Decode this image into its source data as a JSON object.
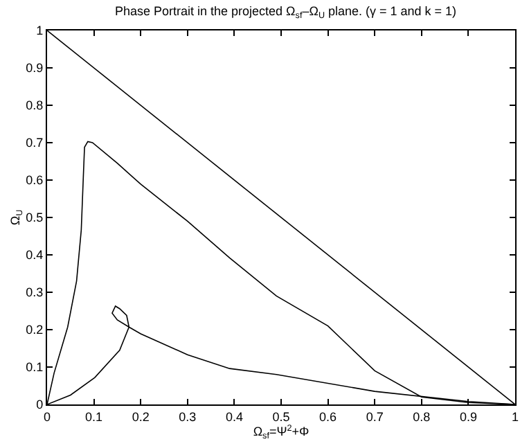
{
  "chart_data": {
    "type": "line",
    "title": "Phase Portrait in the projected Ω$_{sf}$–Ω$_{U}$ plane. (γ = 1 and k = 1)",
    "xlabel": "Ω$_{sf}$=Ψ$^{2}$+Φ",
    "ylabel": "Ω$_{U}$",
    "xlim": [
      0,
      1
    ],
    "ylim": [
      0,
      1
    ],
    "xticks": [
      0,
      0.1,
      0.2,
      0.3,
      0.4,
      0.5,
      0.6,
      0.7,
      0.8,
      0.9,
      1
    ],
    "yticks": [
      0,
      0.1,
      0.2,
      0.3,
      0.4,
      0.5,
      0.6,
      0.7,
      0.8,
      0.9,
      1
    ],
    "marker": "none",
    "line_style": "solid",
    "series": [
      {
        "color": "#000000",
        "x": [
          0,
          1
        ],
        "values": [
          1,
          0
        ]
      },
      {
        "color": "#000000",
        "x": [
          0,
          0.015,
          0.044,
          0.063,
          0.073,
          0.078,
          0.08,
          0.087,
          0.097,
          0.15,
          0.2,
          0.3,
          0.39,
          0.49,
          0.6,
          0.7,
          0.8,
          0.9,
          1
        ],
        "values": [
          0,
          0.084,
          0.207,
          0.33,
          0.466,
          0.626,
          0.688,
          0.703,
          0.7,
          0.645,
          0.589,
          0.49,
          0.392,
          0.29,
          0.21,
          0.09,
          0.02,
          0.005,
          0
        ]
      },
      {
        "color": "#000000",
        "x": [
          0,
          0.05,
          0.102,
          0.155,
          0.175,
          0.17,
          0.155,
          0.146,
          0.139,
          0.15,
          0.175,
          0.2,
          0.3,
          0.39,
          0.49,
          0.7,
          0.9,
          1
        ],
        "values": [
          0,
          0.025,
          0.072,
          0.145,
          0.207,
          0.238,
          0.256,
          0.263,
          0.244,
          0.226,
          0.207,
          0.189,
          0.133,
          0.096,
          0.08,
          0.035,
          0.008,
          0
        ]
      }
    ]
  }
}
